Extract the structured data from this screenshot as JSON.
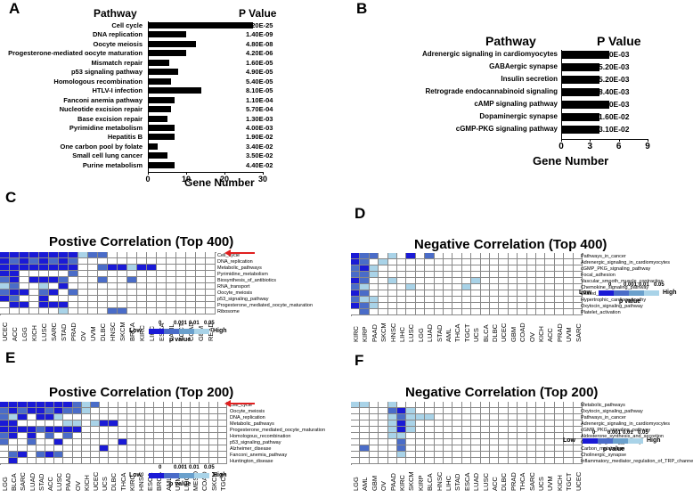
{
  "panels": {
    "A": {
      "letter": "A",
      "header_pathway": "Pathway",
      "header_pvalue": "P Value",
      "rows": [
        {
          "pathway": "Cell cycle",
          "value": 27.5,
          "p": "3.20E-25"
        },
        {
          "pathway": "DNA replication",
          "value": 10,
          "p": "1.40E-09"
        },
        {
          "pathway": "Oocyte meiosis",
          "value": 12.5,
          "p": "4.80E-08"
        },
        {
          "pathway": "Progesterone-mediated oocyte maturation",
          "value": 10,
          "p": "4.20E-06"
        },
        {
          "pathway": "Mismatch repair",
          "value": 5.5,
          "p": "1.60E-05"
        },
        {
          "pathway": "p53 signaling pathway",
          "value": 8,
          "p": "4.90E-05"
        },
        {
          "pathway": "Homologous recombination",
          "value": 6,
          "p": "5.40E-05"
        },
        {
          "pathway": "HTLV-I infection",
          "value": 14,
          "p": "8.10E-05"
        },
        {
          "pathway": "Fanconi anemia pathway",
          "value": 7,
          "p": "1.10E-04"
        },
        {
          "pathway": "Nucleotide excision repair",
          "value": 6,
          "p": "5.70E-04"
        },
        {
          "pathway": "Base excision repair",
          "value": 5,
          "p": "1.30E-03"
        },
        {
          "pathway": "Pyrimidine metabolism",
          "value": 7,
          "p": "4.00E-03"
        },
        {
          "pathway": "Hepatitis B",
          "value": 7,
          "p": "1.90E-02"
        },
        {
          "pathway": "One carbon pool by folate",
          "value": 2.5,
          "p": "3.40E-02"
        },
        {
          "pathway": "Small cell lung cancer",
          "value": 5,
          "p": "3.50E-02"
        },
        {
          "pathway": "Purine metabolism",
          "value": 7,
          "p": "4.40E-02"
        }
      ],
      "xticks": [
        "0",
        "10",
        "20",
        "30"
      ],
      "xmax": 30,
      "xlabel": "Gene Number"
    },
    "B": {
      "letter": "B",
      "header_pathway": "Pathway",
      "header_pvalue": "P Value",
      "rows": [
        {
          "pathway": "Adrenergic signaling in cardiomyocytes",
          "value": 5,
          "p": "3.00E-03"
        },
        {
          "pathway": "GABAergic synapse",
          "value": 4,
          "p": "5.20E-03"
        },
        {
          "pathway": "Insulin secretion",
          "value": 4,
          "p": "5.20E-03"
        },
        {
          "pathway": "Retrograde endocannabinoid signaling",
          "value": 4,
          "p": "8.40E-03"
        },
        {
          "pathway": "cAMP signaling pathway",
          "value": 5,
          "p": "8.90E-03"
        },
        {
          "pathway": "Dopaminergic synapse",
          "value": 4,
          "p": "1.60E-02"
        },
        {
          "pathway": "cGMP-PKG signaling pathway",
          "value": 4,
          "p": "3.10E-02"
        }
      ],
      "xticks": [
        "0",
        "3",
        "6",
        "9"
      ],
      "xmax": 9,
      "xlabel": "Gene Number"
    },
    "C": {
      "letter": "C",
      "title": "Postive Correlation (Top 400)",
      "pathways": [
        "Cell_cycle",
        "DNA_replication",
        "Metabolic_pathways",
        "Pyrimidine_metabolism",
        "Biosynthesis_of_antibiotics",
        "RNA_transport",
        "Oocyte_meiosis",
        "p53_signaling_pathway",
        "Progesterone_mediated_oocyte_maturation",
        "Ribosome"
      ],
      "cancers": [
        "UCEC",
        "ACC",
        "LGG",
        "KICH",
        "LUSC",
        "SARC",
        "STAD",
        "PRAD",
        "OV",
        "UVM",
        "DLBC",
        "HNSC",
        "SKCM",
        "BRCA",
        "KIRC",
        "LIHC",
        "ESCA",
        "LAML",
        "TGCT",
        "COAD",
        "GBM",
        "READ"
      ],
      "grid": [
        "1111111132200000000000",
        "1212121200000000000000",
        "1111111100211311000000",
        "1100000200000000000000",
        "2101112000200200000000",
        "3200301000000000000000",
        "2110210200000000000000",
        "1200100000000000000000",
        "0110111000000000000000",
        "0000003000022000000000"
      ]
    },
    "D": {
      "letter": "D",
      "title": "Negative Correlation (Top 400)",
      "pathways": [
        "Pathways_in_cancer",
        "Adrenergic_signaling_in_cardiomyocytes",
        "cGMP_PKG_signaling_pathway",
        "Focal_adhesion",
        "Vascular_smooth_muscle_contraction",
        "Chemokine_signaling_pathway",
        "Dilated_cardiomyopathy",
        "Hypertrophic_cardiomyopathy",
        "Oxytocin_signaling_pathway",
        "Platelet_activation"
      ],
      "cancers": [
        "KIRC",
        "KIRP",
        "PAAD",
        "SKCM",
        "HNSC",
        "LIHC",
        "LUSC",
        "LGG",
        "LUAD",
        "STAD",
        "AML",
        "THCA",
        "TGCT",
        "UCS",
        "BLCA",
        "DLBC",
        "UCEC",
        "GBM",
        "COAD",
        "OV",
        "KICH",
        "ACC",
        "PRAD",
        "UVM",
        "SARC"
      ],
      "grid": [
        "1220301020000000000000000",
        "1203000000000000000000000",
        "2130000000000000000000000",
        "2230000000000000000000000",
        "1200300000000300000000000",
        "2300003000003000000000000",
        "1200000000000000000000000",
        "2330000000000000000000000",
        "1230000000000000000000000",
        "0200000000000000000000000"
      ]
    },
    "E": {
      "letter": "E",
      "title": "Postive Correlation (Top 200)",
      "pathways": [
        "Cell_cycle",
        "Oocyte_meiosis",
        "DNA_replication",
        "Metabolic_pathways",
        "Progesterone_mediated_oocyte_maturation",
        "Homologous_recombination",
        "p53_signaling_pathway",
        "Alzheimer_disease",
        "Fanconi_anemia_pathway",
        "Huntington_disease"
      ],
      "cancers": [
        "LGG",
        "BLCA",
        "SARC",
        "LUAD",
        "STAD",
        "ACC",
        "LUSC",
        "PAAD",
        "OV",
        "KICH",
        "UCEC",
        "UCS",
        "DLBC",
        "THCA",
        "KIRC",
        "HNSC",
        "ESCA",
        "BRCA",
        "AML",
        "UVM",
        "LIHC",
        "MESO",
        "COAD",
        "SKCM",
        "TGCT"
      ],
      "grid": [
        "1111111123200000000000000",
        "2121121223000000000000000",
        "2310113000000000000000000",
        "1100000330311000000000000",
        "1111211110000000000000000",
        "2101020200000000000000000",
        "2002001000000100000000000",
        "0000000000010000000000000",
        "0210212000000000000000000",
        "0100000000000000000000000"
      ]
    },
    "F": {
      "letter": "F",
      "title": "Negative Correlation (Top 200)",
      "pathways": [
        "Metabolic_pathways",
        "Oxytocin_signaling_pathway",
        "Pathways_in_cancer",
        "Adrenergic_signaling_in_cardiomyocytes",
        "cGMP_PKG_signaling_pathway",
        "Aldosterone_synthesis_and_secretion",
        "Calcium_signaling_pathway",
        "Carbon_metabolism",
        "Cholinergic_synapse",
        "Inflammatory_mediator_regulation_of_TRP_channels"
      ],
      "cancers": [
        "LGG",
        "AML",
        "GBM",
        "OV",
        "PAAD",
        "KIRC",
        "SKCM",
        "KIRP",
        "BLCA",
        "HNSC",
        "LIHC",
        "STAD",
        "ESCA",
        "LUAD",
        "LUSC",
        "ACC",
        "DLBC",
        "PRAD",
        "THCA",
        "SARC",
        "UCS",
        "UVM",
        "KICH",
        "TGCT",
        "UCEC"
      ],
      "grid": [
        "3300300000000000000000000",
        "0000213000000000000000000",
        "0000323330000000000000000",
        "0000313000000000000000000",
        "0000313000000000000000000",
        "0000330000000000000000000",
        "0000020000000000000000000",
        "0200020000000000000000000",
        "0000030000000000000000000",
        "0000000000000000000000000"
      ]
    }
  },
  "legend": {
    "low": "Low",
    "high": "High",
    "ticks": [
      "0",
      "0.001",
      "0.01",
      "0.05"
    ],
    "title": "p value",
    "colors": [
      "#1a1ad6",
      "#4a6cc8",
      "#6aa0cc",
      "#a9d3e8"
    ]
  },
  "colors": {
    "arrow": "#e02020",
    "cell_0": "#ffffff",
    "cell_1": "#1a1ad6",
    "cell_2": "#4a6cc8",
    "cell_3": "#a9d3e8"
  }
}
